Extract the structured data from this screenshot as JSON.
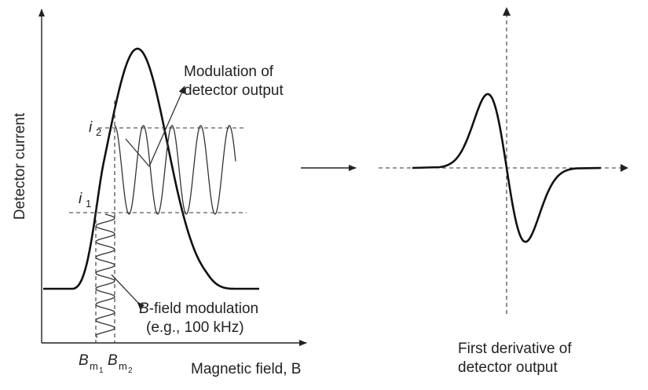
{
  "left_panel": {
    "y_axis_label": "Detector current",
    "x_axis_label": "Magnetic field, B",
    "i1_label": "i",
    "i1_sub": "1",
    "i2_label": "i",
    "i2_sub": "2",
    "bm1_label": "B",
    "bm1_sub": "m",
    "bm1_subsub": "1",
    "bm2_label": "B",
    "bm2_sub": "m",
    "bm2_subsub": "2",
    "modulation_output_line1": "Modulation of",
    "modulation_output_line2": "detector output",
    "bfield_line1_italic": "B",
    "bfield_line1_rest": "-field modulation",
    "bfield_line2": "(e.g., 100 kHz)"
  },
  "right_panel": {
    "caption_line1": "First derivative of",
    "caption_line2": "detector output"
  },
  "colors": {
    "ink": "#111111",
    "background": "#ffffff"
  }
}
